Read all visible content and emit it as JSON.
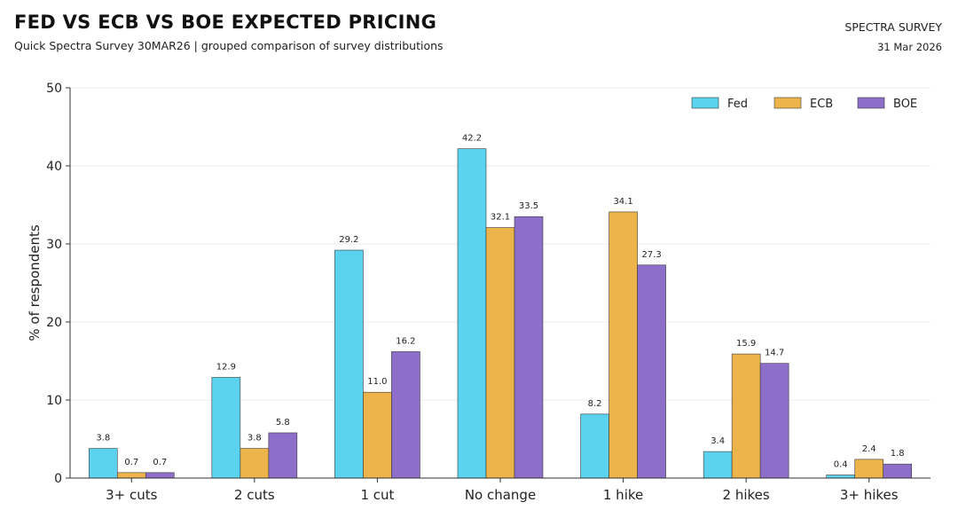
{
  "header": {
    "title": "FED VS ECB VS BOE EXPECTED PRICING",
    "subtitle": "Quick Spectra Survey 30MAR26 | grouped comparison of survey distributions",
    "brand": "SPECTRA SURVEY",
    "date": "31 Mar 2026"
  },
  "colors": {
    "Fed": "#5bd3ee",
    "ECB": "#ecb44a",
    "BOE": "#8d6ec9"
  },
  "chart_data": {
    "type": "bar",
    "title": "FED VS ECB VS BOE EXPECTED PRICING",
    "subtitle": "Quick Spectra Survey 30MAR26 | grouped comparison of survey distributions",
    "xlabel": "",
    "ylabel": "% of respondents",
    "ylim": [
      0,
      50
    ],
    "yticks": [
      0,
      10,
      20,
      30,
      40,
      50
    ],
    "categories": [
      "3+ cuts",
      "2 cuts",
      "1 cut",
      "No change",
      "1 hike",
      "2 hikes",
      "3+ hikes"
    ],
    "series": [
      {
        "name": "Fed",
        "values": [
          3.8,
          12.9,
          29.2,
          42.2,
          8.2,
          3.4,
          0.4
        ]
      },
      {
        "name": "ECB",
        "values": [
          0.7,
          3.8,
          11.0,
          32.1,
          34.1,
          15.9,
          2.4
        ]
      },
      {
        "name": "BOE",
        "values": [
          0.7,
          5.8,
          16.2,
          33.5,
          27.3,
          14.7,
          1.8
        ]
      }
    ],
    "grid": "horizontal",
    "legend": "top-right"
  }
}
